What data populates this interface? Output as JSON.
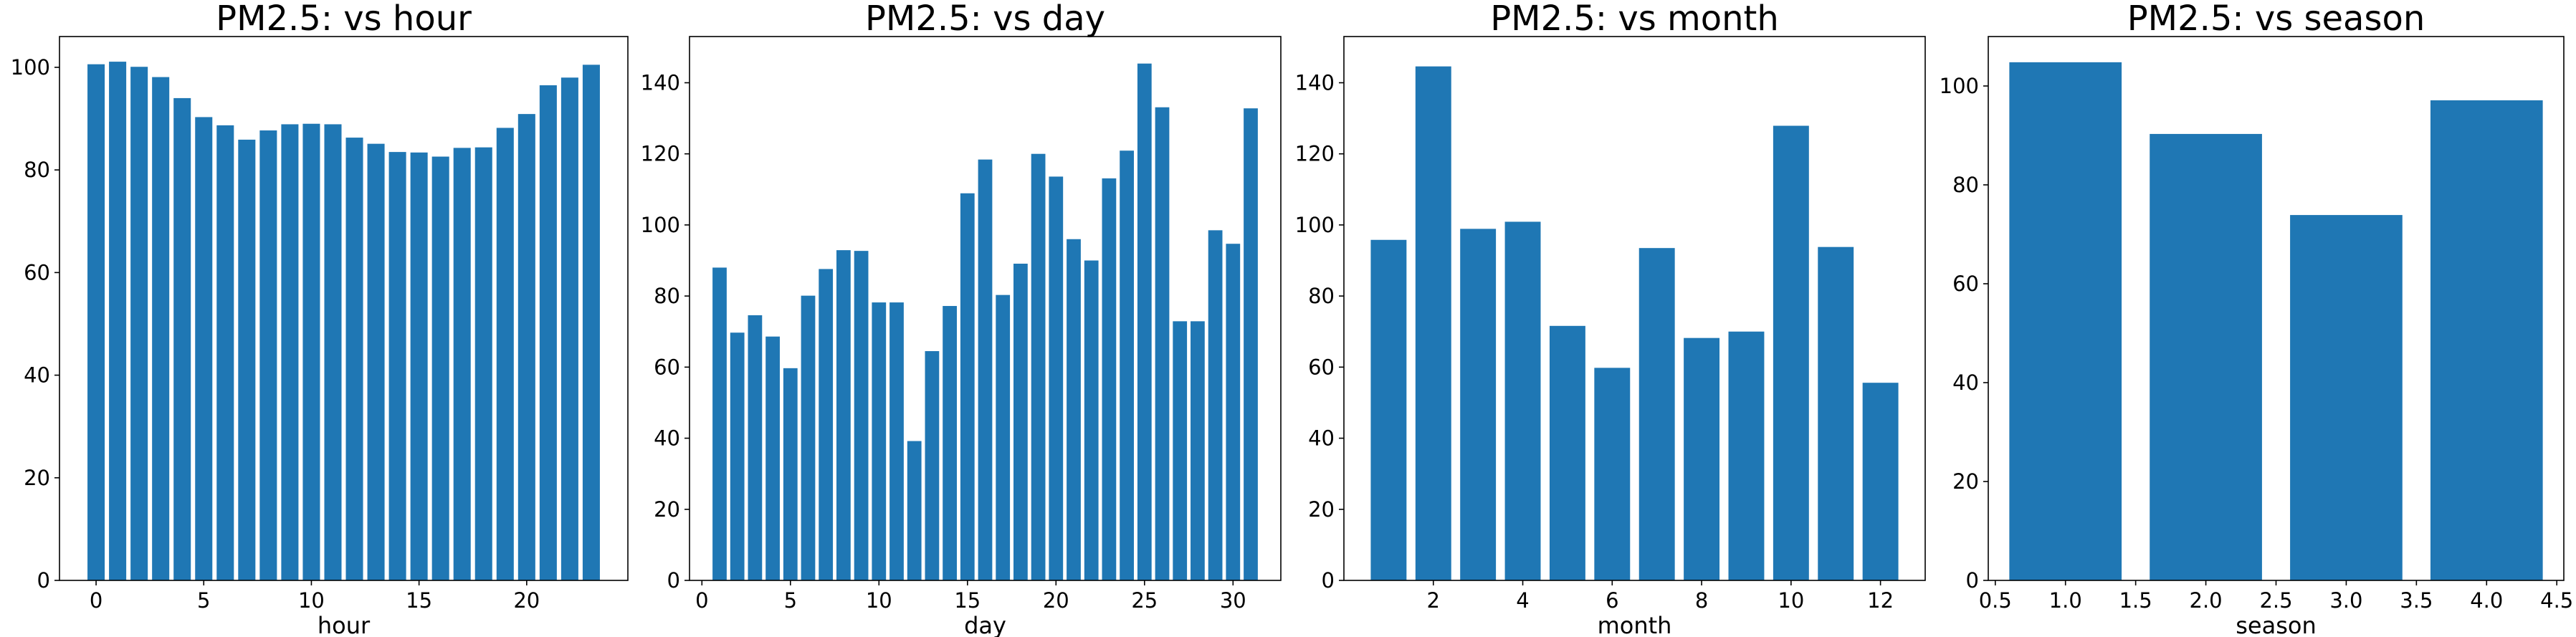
{
  "chart_data": [
    {
      "type": "bar",
      "title": "PM2.5: vs hour",
      "xlabel": "hour",
      "ylabel": "",
      "bar_color": "#1f77b4",
      "x": [
        0,
        1,
        2,
        3,
        4,
        5,
        6,
        7,
        8,
        9,
        10,
        11,
        12,
        13,
        14,
        15,
        16,
        17,
        18,
        19,
        20,
        21,
        22,
        23
      ],
      "values": [
        100.6,
        101.1,
        100.1,
        98.1,
        94.0,
        90.3,
        88.7,
        85.9,
        87.7,
        88.9,
        89.0,
        88.9,
        86.3,
        85.1,
        83.5,
        83.4,
        82.6,
        84.3,
        84.4,
        88.2,
        90.9,
        96.5,
        98.0,
        100.5
      ],
      "xlim": [
        -1.7,
        24.7
      ],
      "ylim": [
        0,
        106
      ],
      "xticks": [
        0,
        5,
        10,
        15,
        20
      ],
      "xtick_labels": [
        "0",
        "5",
        "10",
        "15",
        "20"
      ],
      "yticks": [
        0,
        20,
        40,
        60,
        80,
        100
      ],
      "ytick_labels": [
        "0",
        "20",
        "40",
        "60",
        "80",
        "100"
      ],
      "bar_width": 0.8,
      "grid": false
    },
    {
      "type": "bar",
      "title": "PM2.5: vs day",
      "xlabel": "day",
      "ylabel": "",
      "bar_color": "#1f77b4",
      "x": [
        1,
        2,
        3,
        4,
        5,
        6,
        7,
        8,
        9,
        10,
        11,
        12,
        13,
        14,
        15,
        16,
        17,
        18,
        19,
        20,
        21,
        22,
        23,
        24,
        25,
        26,
        27,
        28,
        29,
        30,
        31
      ],
      "values": [
        88.0,
        69.7,
        74.6,
        68.6,
        59.7,
        80.1,
        87.6,
        92.9,
        92.7,
        78.2,
        78.2,
        39.2,
        64.5,
        77.2,
        108.9,
        118.4,
        80.3,
        89.1,
        120.0,
        113.6,
        96.0,
        90.0,
        113.1,
        120.9,
        145.4,
        133.1,
        72.9,
        72.9,
        98.5,
        94.7,
        132.8
      ],
      "xlim": [
        -0.7,
        32.7
      ],
      "ylim": [
        0,
        153
      ],
      "xticks": [
        0,
        5,
        10,
        15,
        20,
        25,
        30
      ],
      "xtick_labels": [
        "0",
        "5",
        "10",
        "15",
        "20",
        "25",
        "30"
      ],
      "yticks": [
        0,
        20,
        40,
        60,
        80,
        100,
        120,
        140
      ],
      "ytick_labels": [
        "0",
        "20",
        "40",
        "60",
        "80",
        "100",
        "120",
        "140"
      ],
      "bar_width": 0.8,
      "grid": false
    },
    {
      "type": "bar",
      "title": "PM2.5: vs month",
      "xlabel": "month",
      "ylabel": "",
      "bar_color": "#1f77b4",
      "x": [
        1,
        2,
        3,
        4,
        5,
        6,
        7,
        8,
        9,
        10,
        11,
        12
      ],
      "values": [
        95.8,
        144.6,
        98.9,
        100.9,
        71.6,
        59.8,
        93.5,
        68.2,
        70.0,
        127.9,
        93.8,
        55.6
      ],
      "xlim": [
        0.0,
        13.0
      ],
      "ylim": [
        0,
        153
      ],
      "xticks": [
        2,
        4,
        6,
        8,
        10,
        12
      ],
      "xtick_labels": [
        "2",
        "4",
        "6",
        "8",
        "10",
        "12"
      ],
      "yticks": [
        0,
        20,
        40,
        60,
        80,
        100,
        120,
        140
      ],
      "ytick_labels": [
        "0",
        "20",
        "40",
        "60",
        "80",
        "100",
        "120",
        "140"
      ],
      "bar_width": 0.8,
      "grid": false
    },
    {
      "type": "bar",
      "title": "PM2.5: vs season",
      "xlabel": "season",
      "ylabel": "",
      "bar_color": "#1f77b4",
      "x": [
        1,
        2,
        3,
        4
      ],
      "values": [
        104.8,
        90.3,
        73.9,
        97.1
      ],
      "xlim": [
        0.45,
        4.55
      ],
      "ylim": [
        0,
        110
      ],
      "xticks": [
        0.5,
        1.0,
        1.5,
        2.0,
        2.5,
        3.0,
        3.5,
        4.0,
        4.5
      ],
      "xtick_labels": [
        "0.5",
        "1.0",
        "1.5",
        "2.0",
        "2.5",
        "3.0",
        "3.5",
        "4.0",
        "4.5"
      ],
      "yticks": [
        0,
        20,
        40,
        60,
        80,
        100
      ],
      "ytick_labels": [
        "0",
        "20",
        "40",
        "60",
        "80",
        "100"
      ],
      "bar_width": 0.8,
      "grid": false
    }
  ]
}
